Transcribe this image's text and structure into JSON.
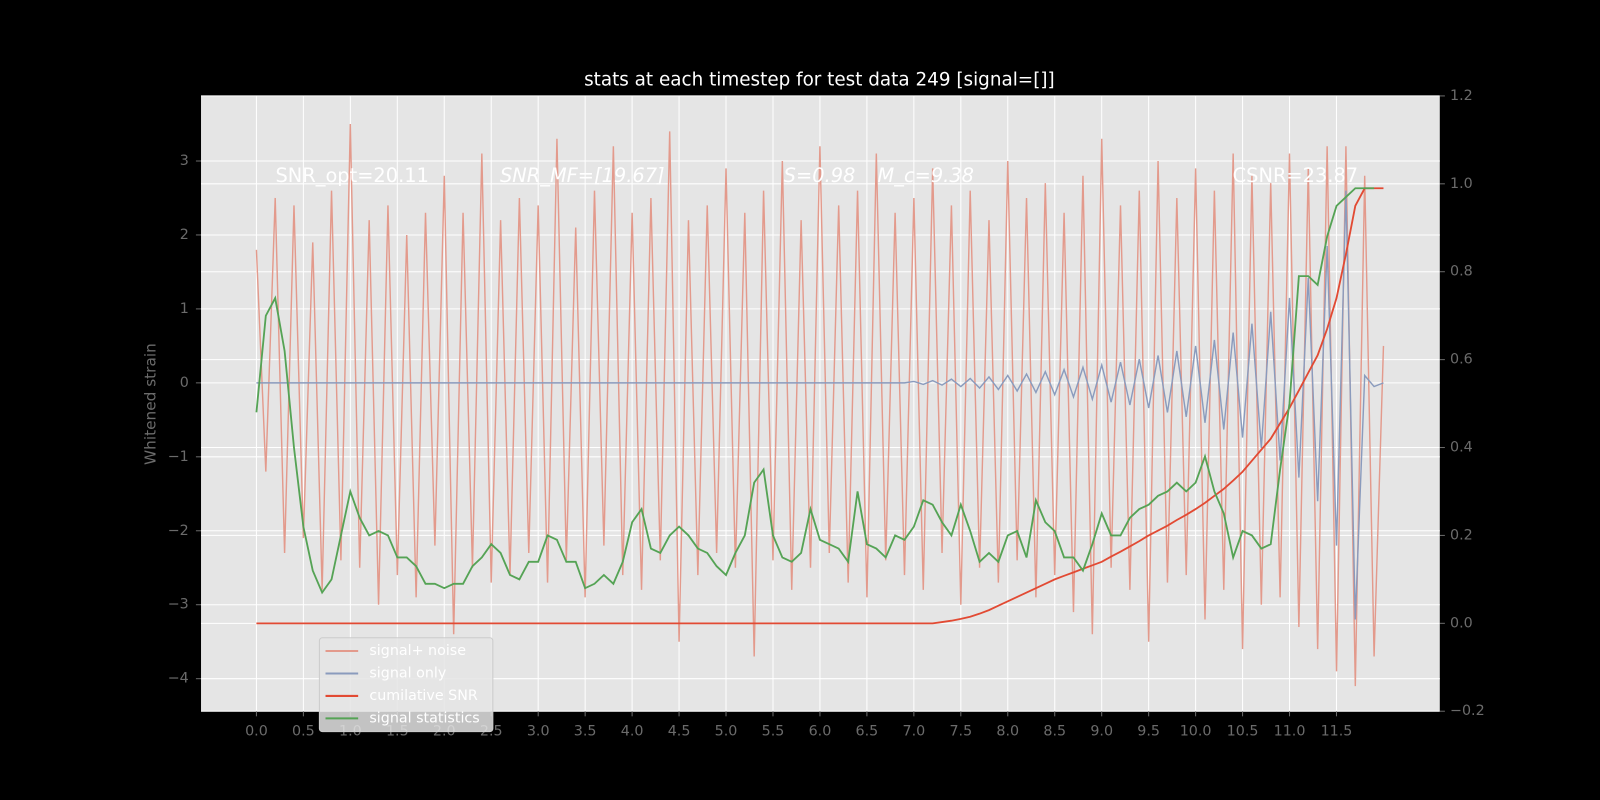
{
  "chart_data": {
    "type": "line",
    "title": "stats at each timestep for test data 249 [signal=[]]",
    "y_label": "Whitened strain",
    "annotations": [
      "SNR_opt=20.11",
      "SNR_MF=[19.67]",
      "S=0.98",
      "M_c=9.38",
      "CSNR=23.87"
    ],
    "grid": true,
    "legend": "lower left",
    "xlim": [
      -0.59,
      12.6
    ],
    "ylim": [
      -4.44,
      3.88
    ],
    "y2lim": [
      -0.2,
      1.2
    ],
    "xticks": [
      {
        "value": 0,
        "label": "0.0"
      },
      0.5,
      {
        "value": 1,
        "label": "1.0"
      },
      1.5,
      {
        "value": 2,
        "label": "2.0"
      },
      2.5,
      {
        "value": 3,
        "label": "3.0"
      },
      3.5,
      {
        "value": 4,
        "label": "4.0"
      },
      4.5,
      {
        "value": 5,
        "label": "5.0"
      },
      5.5,
      {
        "value": 6,
        "label": "6.0"
      },
      6.5,
      {
        "value": 7,
        "label": "7.0"
      },
      7.5,
      {
        "value": 8,
        "label": "8.0"
      },
      8.5,
      {
        "value": 9,
        "label": "9.0"
      },
      9.5,
      {
        "value": 10,
        "label": "10.0"
      },
      10.5,
      {
        "value": 11,
        "label": "11.0"
      },
      11.5
    ],
    "yticks": [
      3,
      2,
      1,
      0,
      {
        "value": -1,
        "label": "−1"
      },
      {
        "value": -2,
        "label": "−2"
      },
      {
        "value": -3,
        "label": "−3"
      },
      {
        "value": -4,
        "label": "−4"
      }
    ],
    "y2ticks": [
      1.2,
      {
        "value": 1,
        "label": "1.0"
      },
      0.8,
      0.6,
      0.4,
      0.2,
      {
        "value": 0,
        "label": "0.0"
      },
      {
        "value": -0.2,
        "label": "−0.2"
      }
    ],
    "x": [
      0,
      0.1,
      0.2,
      0.3,
      0.4,
      0.5,
      0.6,
      0.7,
      0.8,
      0.9,
      1,
      1.1,
      1.2,
      1.3,
      1.4,
      1.5,
      1.6,
      1.7,
      1.8,
      1.9,
      2,
      2.1,
      2.2,
      2.3,
      2.4,
      2.5,
      2.6,
      2.7,
      2.8,
      2.9,
      3,
      3.1,
      3.2,
      3.3,
      3.4,
      3.5,
      3.6,
      3.7,
      3.8,
      3.9,
      4,
      4.1,
      4.2,
      4.3,
      4.4,
      4.5,
      4.6,
      4.7,
      4.8,
      4.9,
      5,
      5.1,
      5.2,
      5.3,
      5.4,
      5.5,
      5.6,
      5.7,
      5.8,
      5.9,
      6,
      6.1,
      6.2,
      6.3,
      6.4,
      6.5,
      6.6,
      6.7,
      6.8,
      6.9,
      7,
      7.1,
      7.2,
      7.3,
      7.4,
      7.5,
      7.6,
      7.7,
      7.8,
      7.9,
      8,
      8.1,
      8.2,
      8.3,
      8.4,
      8.5,
      8.6,
      8.7,
      8.8,
      8.9,
      9,
      9.1,
      9.2,
      9.3,
      9.4,
      9.5,
      9.6,
      9.7,
      9.8,
      9.9,
      10,
      10.1,
      10.2,
      10.3,
      10.4,
      10.5,
      10.6,
      10.7,
      10.8,
      10.9,
      11,
      11.1,
      11.2,
      11.3,
      11.4,
      11.5,
      11.6,
      11.7,
      11.8,
      11.9,
      12
    ],
    "series": [
      {
        "name": "signal+ noise",
        "color": "#e39a8c",
        "values": [
          1.8,
          -1.2,
          2.5,
          -2.3,
          2.4,
          -2.1,
          1.9,
          -2.8,
          2.6,
          -2.4,
          3.5,
          -2.5,
          2.2,
          -3.0,
          2.4,
          -2.6,
          2.0,
          -2.9,
          2.3,
          -2.2,
          2.8,
          -3.4,
          2.3,
          -2.5,
          3.1,
          -2.7,
          2.2,
          -2.6,
          2.5,
          -2.3,
          2.4,
          -2.7,
          3.3,
          -2.4,
          2.1,
          -2.9,
          2.6,
          -2.2,
          3.2,
          -2.6,
          2.3,
          -2.8,
          2.5,
          -2.4,
          3.4,
          -3.5,
          2.2,
          -2.6,
          2.4,
          -2.3,
          2.9,
          -2.5,
          2.3,
          -3.7,
          2.6,
          -2.4,
          3.0,
          -2.8,
          2.2,
          -2.5,
          3.2,
          -2.3,
          2.4,
          -2.7,
          2.6,
          -2.9,
          3.1,
          -2.4,
          2.3,
          -2.6,
          2.5,
          -2.8,
          2.9,
          -2.3,
          2.4,
          -3.0,
          2.6,
          -2.5,
          2.2,
          -2.7,
          3.0,
          -2.4,
          2.5,
          -2.9,
          2.7,
          -2.6,
          2.3,
          -3.1,
          2.8,
          -3.4,
          3.3,
          -2.5,
          2.4,
          -2.8,
          2.6,
          -3.5,
          3.0,
          -2.7,
          2.5,
          -2.6,
          2.9,
          -3.2,
          2.6,
          -2.8,
          3.1,
          -3.6,
          2.8,
          -3.0,
          2.7,
          -2.9,
          3.1,
          -3.3,
          2.9,
          -3.6,
          3.2,
          -3.9,
          3.2,
          -4.1,
          2.8,
          -3.7,
          0.5
        ]
      },
      {
        "name": "signal only",
        "color": "#8a9bbd",
        "values": [
          0,
          0,
          0,
          0,
          0,
          0,
          0,
          0,
          0,
          0,
          0,
          0,
          0,
          0,
          0,
          0,
          0,
          0,
          0,
          0,
          0,
          0,
          0,
          0,
          0,
          0,
          0,
          0,
          0,
          0,
          0,
          0,
          0,
          0,
          0,
          0,
          0,
          0,
          0,
          0,
          0,
          0,
          0,
          0,
          0,
          0,
          0,
          0,
          0,
          0,
          0,
          0,
          0,
          0,
          0,
          0,
          0,
          0,
          0,
          0,
          0,
          0,
          0,
          0,
          0,
          0,
          0,
          0,
          0,
          0,
          0.02,
          -0.02,
          0.03,
          -0.03,
          0.05,
          -0.05,
          0.06,
          -0.07,
          0.08,
          -0.09,
          0.1,
          -0.11,
          0.12,
          -0.13,
          0.15,
          -0.16,
          0.18,
          -0.19,
          0.21,
          -0.22,
          0.24,
          -0.26,
          0.28,
          -0.3,
          0.32,
          -0.34,
          0.37,
          -0.4,
          0.43,
          -0.46,
          0.5,
          -0.54,
          0.58,
          -0.63,
          0.68,
          -0.74,
          0.8,
          -0.88,
          0.96,
          -1.05,
          1.15,
          -1.28,
          1.42,
          -1.6,
          1.85,
          -2.2,
          2.6,
          -3.2,
          0.1,
          -0.05,
          0
        ]
      },
      {
        "name": "cumilative SNR",
        "color": "#e24a33",
        "axis": "y2",
        "values": [
          0,
          0,
          0,
          0,
          0,
          0,
          0,
          0,
          0,
          0,
          0,
          0,
          0,
          0,
          0,
          0,
          0,
          0,
          0,
          0,
          0,
          0,
          0,
          0,
          0,
          0,
          0,
          0,
          0,
          0,
          0,
          0,
          0,
          0,
          0,
          0,
          0,
          0,
          0,
          0,
          0,
          0,
          0,
          0,
          0,
          0,
          0,
          0,
          0,
          0,
          0,
          0,
          0,
          0,
          0,
          0,
          0,
          0,
          0,
          0,
          0,
          0,
          0,
          0,
          0,
          0,
          0,
          0,
          0,
          0,
          0,
          0,
          0,
          0.003,
          0.006,
          0.01,
          0.015,
          0.022,
          0.03,
          0.04,
          0.05,
          0.06,
          0.07,
          0.08,
          0.09,
          0.1,
          0.108,
          0.116,
          0.124,
          0.132,
          0.14,
          0.152,
          0.163,
          0.175,
          0.187,
          0.2,
          0.211,
          0.222,
          0.235,
          0.247,
          0.26,
          0.274,
          0.29,
          0.306,
          0.325,
          0.345,
          0.37,
          0.395,
          0.42,
          0.455,
          0.49,
          0.53,
          0.57,
          0.61,
          0.67,
          0.74,
          0.84,
          0.95,
          0.99,
          0.99,
          0.99
        ]
      },
      {
        "name": "signal statistics",
        "color": "#55a355",
        "axis": "y2",
        "values": [
          0.48,
          0.7,
          0.74,
          0.62,
          0.4,
          0.22,
          0.12,
          0.07,
          0.1,
          0.2,
          0.3,
          0.24,
          0.2,
          0.21,
          0.2,
          0.15,
          0.15,
          0.13,
          0.09,
          0.09,
          0.08,
          0.09,
          0.09,
          0.13,
          0.15,
          0.18,
          0.16,
          0.11,
          0.1,
          0.14,
          0.14,
          0.2,
          0.19,
          0.14,
          0.14,
          0.08,
          0.09,
          0.11,
          0.09,
          0.14,
          0.23,
          0.26,
          0.17,
          0.16,
          0.2,
          0.22,
          0.2,
          0.17,
          0.16,
          0.13,
          0.11,
          0.16,
          0.2,
          0.32,
          0.35,
          0.2,
          0.15,
          0.14,
          0.16,
          0.26,
          0.19,
          0.18,
          0.17,
          0.14,
          0.3,
          0.18,
          0.17,
          0.15,
          0.2,
          0.19,
          0.22,
          0.28,
          0.27,
          0.23,
          0.2,
          0.27,
          0.21,
          0.14,
          0.16,
          0.14,
          0.2,
          0.21,
          0.15,
          0.28,
          0.23,
          0.21,
          0.15,
          0.15,
          0.12,
          0.18,
          0.25,
          0.2,
          0.2,
          0.24,
          0.26,
          0.27,
          0.29,
          0.3,
          0.32,
          0.3,
          0.32,
          0.38,
          0.3,
          0.25,
          0.15,
          0.21,
          0.2,
          0.17,
          0.18,
          0.35,
          0.5,
          0.79,
          0.79,
          0.77,
          0.88,
          0.95,
          0.97,
          0.99,
          0.99,
          0.99,
          null
        ]
      }
    ]
  }
}
